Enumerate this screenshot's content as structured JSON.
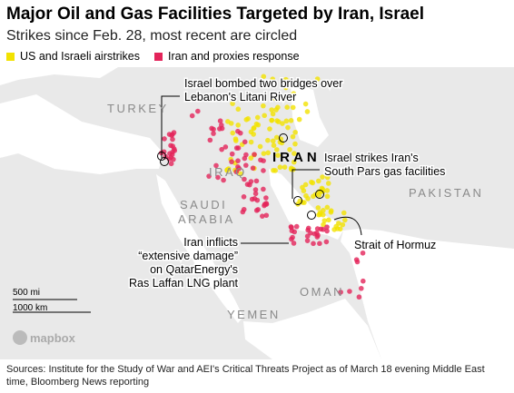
{
  "header": {
    "title": "Major Oil and Gas Facilities Targeted by Iran, Israel",
    "subtitle": "Strikes since Feb. 28, most recent are circled"
  },
  "legend": [
    {
      "label": "US and Israeli airstrikes",
      "color": "#f2e200"
    },
    {
      "label": "Iran and proxies response",
      "color": "#e3245a"
    }
  ],
  "map": {
    "countries": [
      "TURKEY",
      "IRAN",
      "IRAQ",
      "SAUDI",
      "ARABIA",
      "PAKISTAN",
      "OMAN",
      "YEMEN"
    ],
    "annotations": [
      {
        "lines": [
          "Israel bombed two bridges over",
          "Lebanon's Litani River"
        ]
      },
      {
        "lines": [
          "Israel strikes Iran's",
          "South Pars gas facilities"
        ]
      },
      {
        "lines": [
          "Iran inflicts",
          "“extensive damage”",
          "on QatarEnergy's",
          "Ras Laffan LNG plant"
        ]
      },
      {
        "lines": [
          "Strait of Hormuz"
        ]
      }
    ],
    "scale": [
      "500 mi",
      "1000 km"
    ],
    "attribution": "mapbox"
  },
  "footer": {
    "source": "Sources: Institute for the Study of War and AEI's Critical Threats Project as of March 18 evening Middle East time, Bloomberg News reporting"
  }
}
